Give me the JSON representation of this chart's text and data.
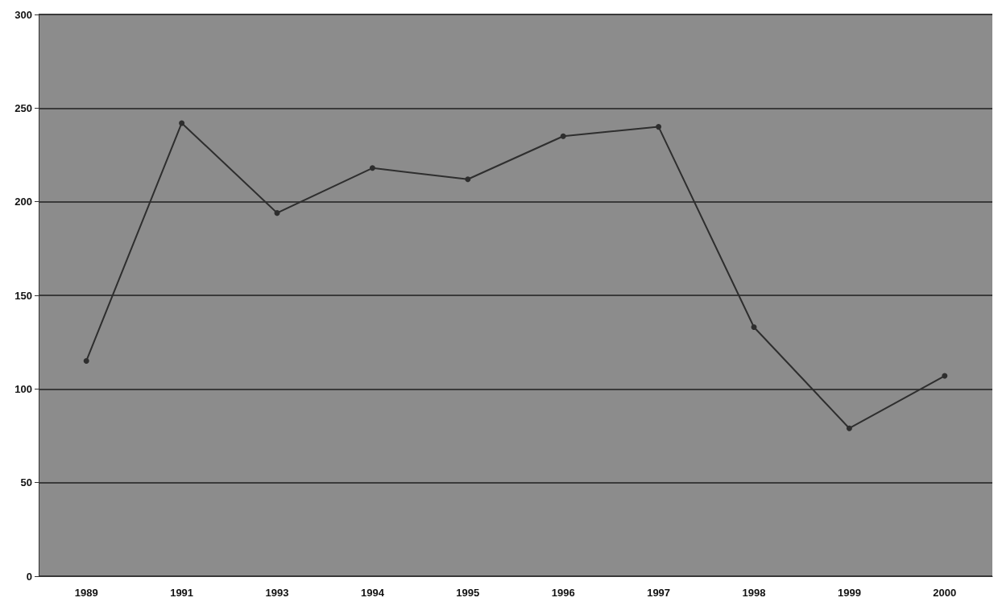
{
  "chart_data": {
    "type": "line",
    "categories": [
      "1989",
      "1991",
      "1993",
      "1994",
      "1995",
      "1996",
      "1997",
      "1998",
      "1999",
      "2000"
    ],
    "values": [
      115,
      242,
      194,
      218,
      212,
      235,
      240,
      133,
      79,
      107
    ],
    "color": "#2e2e2e",
    "ylim": [
      0,
      300
    ],
    "yticks": [
      0,
      50,
      100,
      150,
      200,
      250,
      300
    ],
    "grid": "y",
    "marker": "circle",
    "line_style": "solid"
  }
}
